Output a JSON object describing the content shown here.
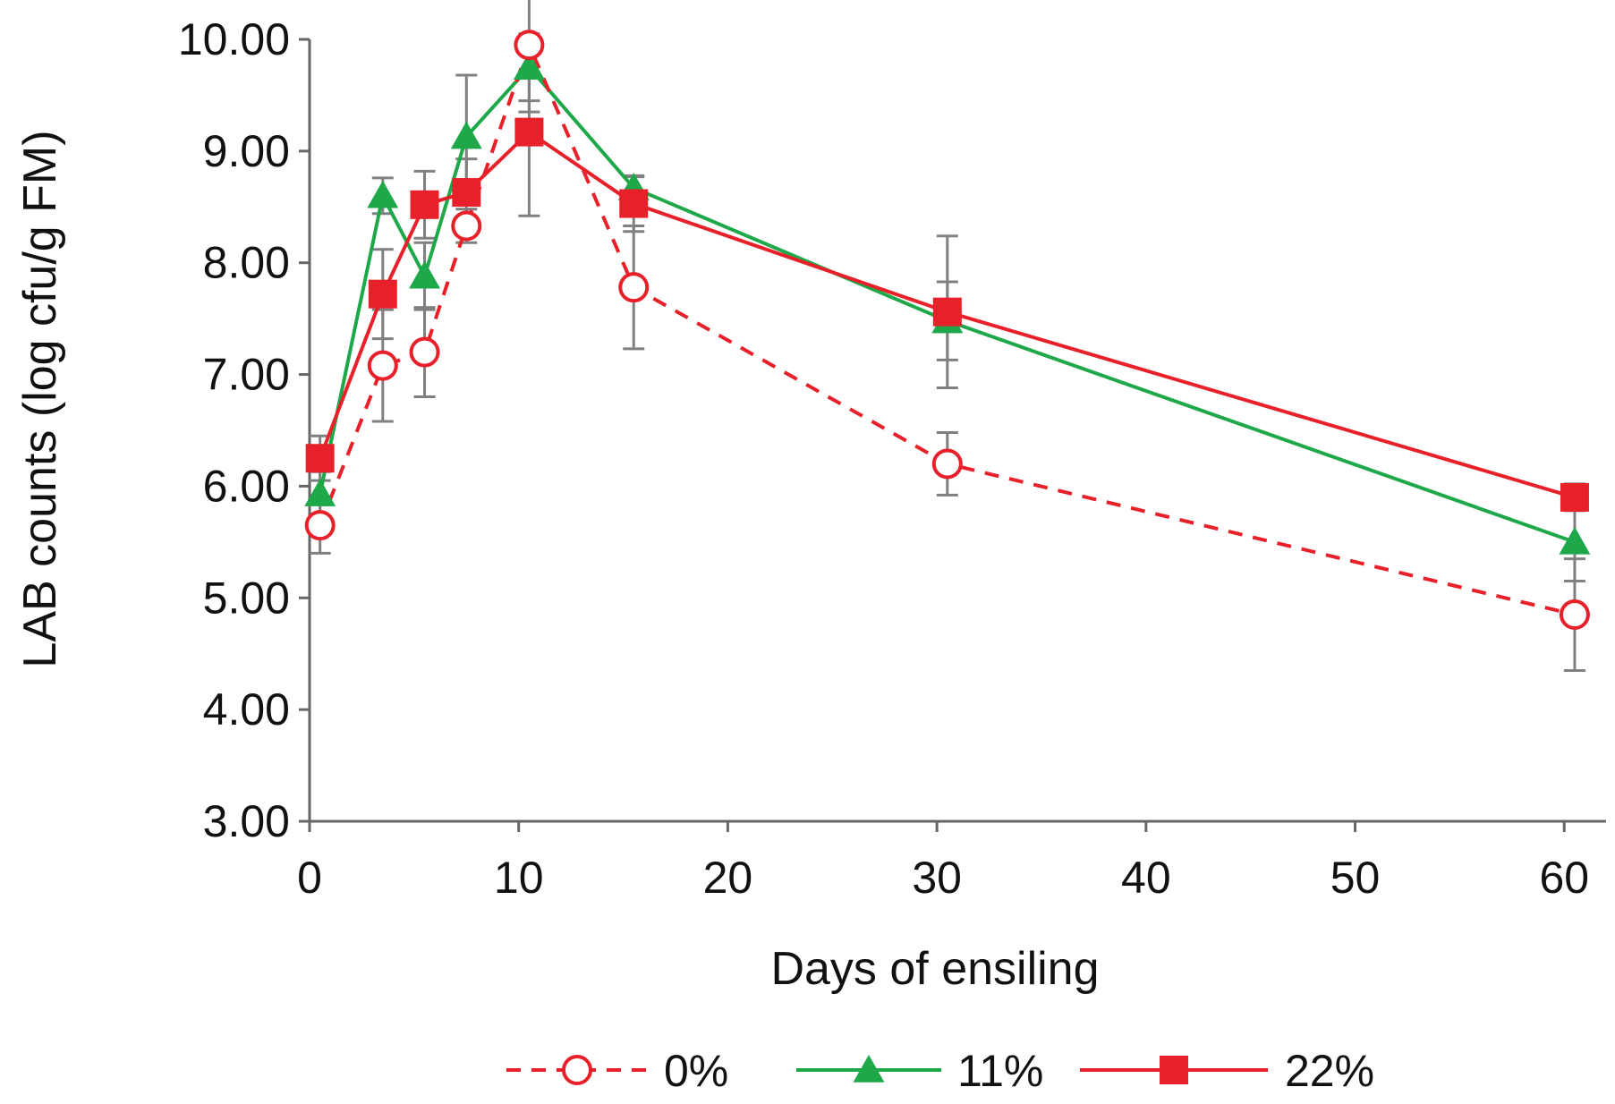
{
  "chart_data": {
    "type": "line",
    "title": "",
    "xlabel": "Days of ensiling",
    "ylabel": "LAB counts (log cfu/g FM)",
    "xlim": [
      0,
      62
    ],
    "ylim": [
      3.0,
      10.0
    ],
    "xticks": [
      0,
      10,
      20,
      30,
      40,
      50,
      60
    ],
    "xtick_labels": [
      "0",
      "10",
      "20",
      "30",
      "40",
      "50",
      "60"
    ],
    "yticks": [
      3.0,
      4.0,
      5.0,
      6.0,
      7.0,
      8.0,
      9.0,
      10.0
    ],
    "ytick_labels": [
      "3.00",
      "4.00",
      "5.00",
      "6.00",
      "7.00",
      "8.00",
      "9.00",
      "10.00"
    ],
    "grid": false,
    "legend_position": "bottom",
    "series": [
      {
        "name": "0%",
        "color": "#e8202a",
        "line_style": "dashed",
        "marker": "open-circle",
        "x": [
          0.5,
          3.5,
          5.5,
          7.5,
          10.5,
          15.5,
          30.5,
          60.5
        ],
        "y": [
          5.65,
          7.08,
          7.2,
          8.33,
          9.95,
          7.78,
          6.2,
          4.85
        ],
        "err": [
          0.25,
          0.5,
          0.4,
          0.15,
          0.6,
          0.55,
          0.28,
          0.5
        ]
      },
      {
        "name": "11%",
        "color": "#1fa84a",
        "line_style": "solid",
        "marker": "filled-triangle",
        "x": [
          0.5,
          3.5,
          5.5,
          7.5,
          10.5,
          15.5,
          30.5,
          60.5
        ],
        "y": [
          5.93,
          8.6,
          7.88,
          9.13,
          9.75,
          8.67,
          7.48,
          5.5
        ],
        "err": [
          0.2,
          0.16,
          0.3,
          0.55,
          0.3,
          0.1,
          0.35,
          0.35
        ]
      },
      {
        "name": "22%",
        "color": "#e8202a",
        "line_style": "solid",
        "marker": "filled-square",
        "x": [
          0.5,
          3.5,
          5.5,
          7.5,
          10.5,
          15.5,
          30.5,
          60.5
        ],
        "y": [
          6.25,
          7.72,
          8.52,
          8.63,
          9.17,
          8.53,
          7.56,
          5.9
        ],
        "err": [
          0.2,
          0.4,
          0.3,
          0.3,
          0.75,
          0.25,
          0.68,
          0.12
        ]
      }
    ]
  }
}
